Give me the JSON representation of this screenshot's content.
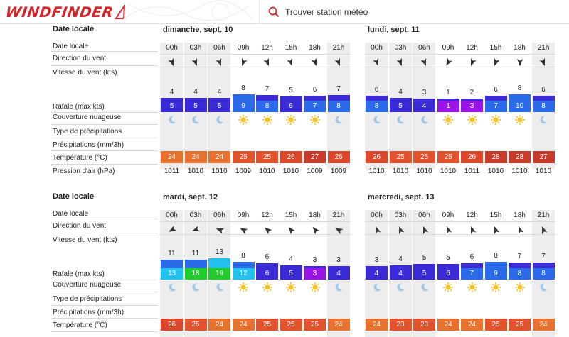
{
  "header": {
    "brand": "WINDFINDER",
    "search_placeholder": "Trouver station météo"
  },
  "labels": {
    "date_locale": "Date locale",
    "date_locale_row": "Date locale",
    "direction": "Direction du vent",
    "vitesse": "Vitesse du vent  (kts)",
    "rafale": "Rafale  (max kts)",
    "couverture": "Couverture nuageuse",
    "type_precip": "Type de précipitations",
    "precip": "Précipitations  (mm/3h)",
    "temperature": "Température  (°C)",
    "pression": "Pression d'air  (hPa)"
  },
  "colors": {
    "grey_col": "#ededed",
    "temp_24": "#e8712e",
    "temp_25": "#e2522c",
    "temp_26": "#dc472b",
    "temp_27": "#c83a2a",
    "temp_28": "#c93b2a",
    "wind_low": "#3a2bd6",
    "wind_mid": "#2b6ae8",
    "wind_high": "#22c2f0",
    "gust_purple": "#9b14e6",
    "gust_green": "#1fcc2c"
  },
  "forecast": [
    {
      "date": "dimanche, sept. 10",
      "hours": [
        "00h",
        "03h",
        "06h",
        "09h",
        "12h",
        "15h",
        "18h",
        "21h"
      ],
      "direction_deg": [
        160,
        160,
        160,
        200,
        160,
        160,
        160,
        160
      ],
      "wind": [
        "4",
        "4",
        "4",
        "8",
        "7",
        "5",
        "6",
        "7"
      ],
      "gust": [
        "5",
        "5",
        "5",
        "9",
        "8",
        "6",
        "7",
        "8"
      ],
      "clouds": [
        "moon",
        "moon",
        "moon",
        "sun",
        "sun",
        "sun",
        "sun",
        "moon"
      ],
      "temp": [
        "24",
        "24",
        "24",
        "25",
        "25",
        "26",
        "27",
        "26"
      ],
      "pressure": [
        "1011",
        "1010",
        "1010",
        "1009",
        "1010",
        "1010",
        "1009",
        "1009"
      ]
    },
    {
      "date": "lundi, sept. 11",
      "hours": [
        "00h",
        "03h",
        "06h",
        "09h",
        "12h",
        "15h",
        "18h",
        "21h"
      ],
      "direction_deg": [
        160,
        160,
        160,
        210,
        200,
        200,
        180,
        160
      ],
      "wind": [
        "6",
        "4",
        "3",
        "1",
        "2",
        "6",
        "8",
        "6"
      ],
      "gust": [
        "8",
        "5",
        "4",
        "1",
        "3",
        "7",
        "10",
        "8"
      ],
      "clouds": [
        "moon",
        "moon",
        "moon",
        "sun",
        "sun",
        "sun",
        "sun",
        "moon"
      ],
      "temp": [
        "26",
        "25",
        "25",
        "25",
        "26",
        "28",
        "28",
        "27"
      ],
      "pressure": [
        "1010",
        "1010",
        "1010",
        "1010",
        "1011",
        "1010",
        "1010",
        "1010"
      ]
    },
    {
      "date": "mardi, sept. 12",
      "hours": [
        "00h",
        "03h",
        "06h",
        "09h",
        "12h",
        "15h",
        "18h",
        "21h"
      ],
      "direction_deg": [
        240,
        250,
        290,
        300,
        310,
        320,
        320,
        300
      ],
      "wind": [
        "11",
        "11",
        "13",
        "8",
        "6",
        "4",
        "3",
        "3"
      ],
      "gust": [
        "13",
        "18",
        "19",
        "12",
        "6",
        "5",
        "3",
        "4"
      ],
      "clouds": [
        "moon",
        "moon",
        "moon",
        "sun",
        "sun",
        "sun",
        "sun",
        "moon"
      ],
      "temp": [
        "26",
        "25",
        "24",
        "24",
        "25",
        "25",
        "25",
        "24"
      ],
      "pressure": []
    },
    {
      "date": "mercredi, sept. 13",
      "hours": [
        "00h",
        "03h",
        "06h",
        "09h",
        "12h",
        "15h",
        "18h",
        "21h"
      ],
      "direction_deg": [
        340,
        340,
        340,
        340,
        340,
        340,
        340,
        340
      ],
      "wind": [
        "3",
        "4",
        "5",
        "5",
        "6",
        "8",
        "7",
        "7"
      ],
      "gust": [
        "4",
        "4",
        "5",
        "6",
        "7",
        "9",
        "8",
        "8"
      ],
      "clouds": [
        "moon",
        "moon",
        "moon",
        "sun",
        "sun",
        "sun",
        "sun",
        "moon"
      ],
      "temp": [
        "24",
        "23",
        "23",
        "24",
        "24",
        "25",
        "25",
        "24"
      ],
      "pressure": []
    }
  ]
}
